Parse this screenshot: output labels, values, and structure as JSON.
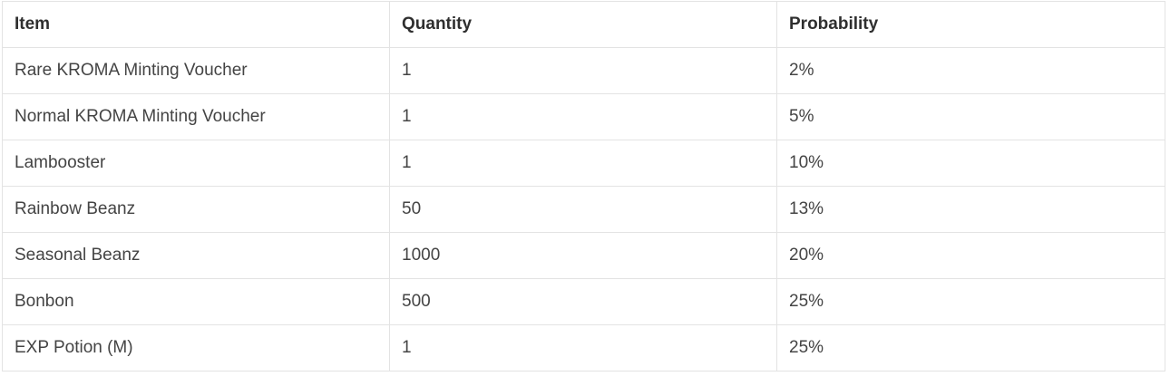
{
  "table": {
    "headers": [
      "Item",
      "Quantity",
      "Probability"
    ],
    "rows": [
      [
        "Rare KROMA Minting Voucher",
        "1",
        "2%"
      ],
      [
        "Normal KROMA Minting Voucher",
        "1",
        "5%"
      ],
      [
        "Lambooster",
        "1",
        "10%"
      ],
      [
        "Rainbow Beanz",
        "50",
        "13%"
      ],
      [
        "Seasonal Beanz",
        "1000",
        "20%"
      ],
      [
        "Bonbon",
        "500",
        "25%"
      ],
      [
        "EXP Potion (M)",
        "1",
        "25%"
      ]
    ]
  }
}
